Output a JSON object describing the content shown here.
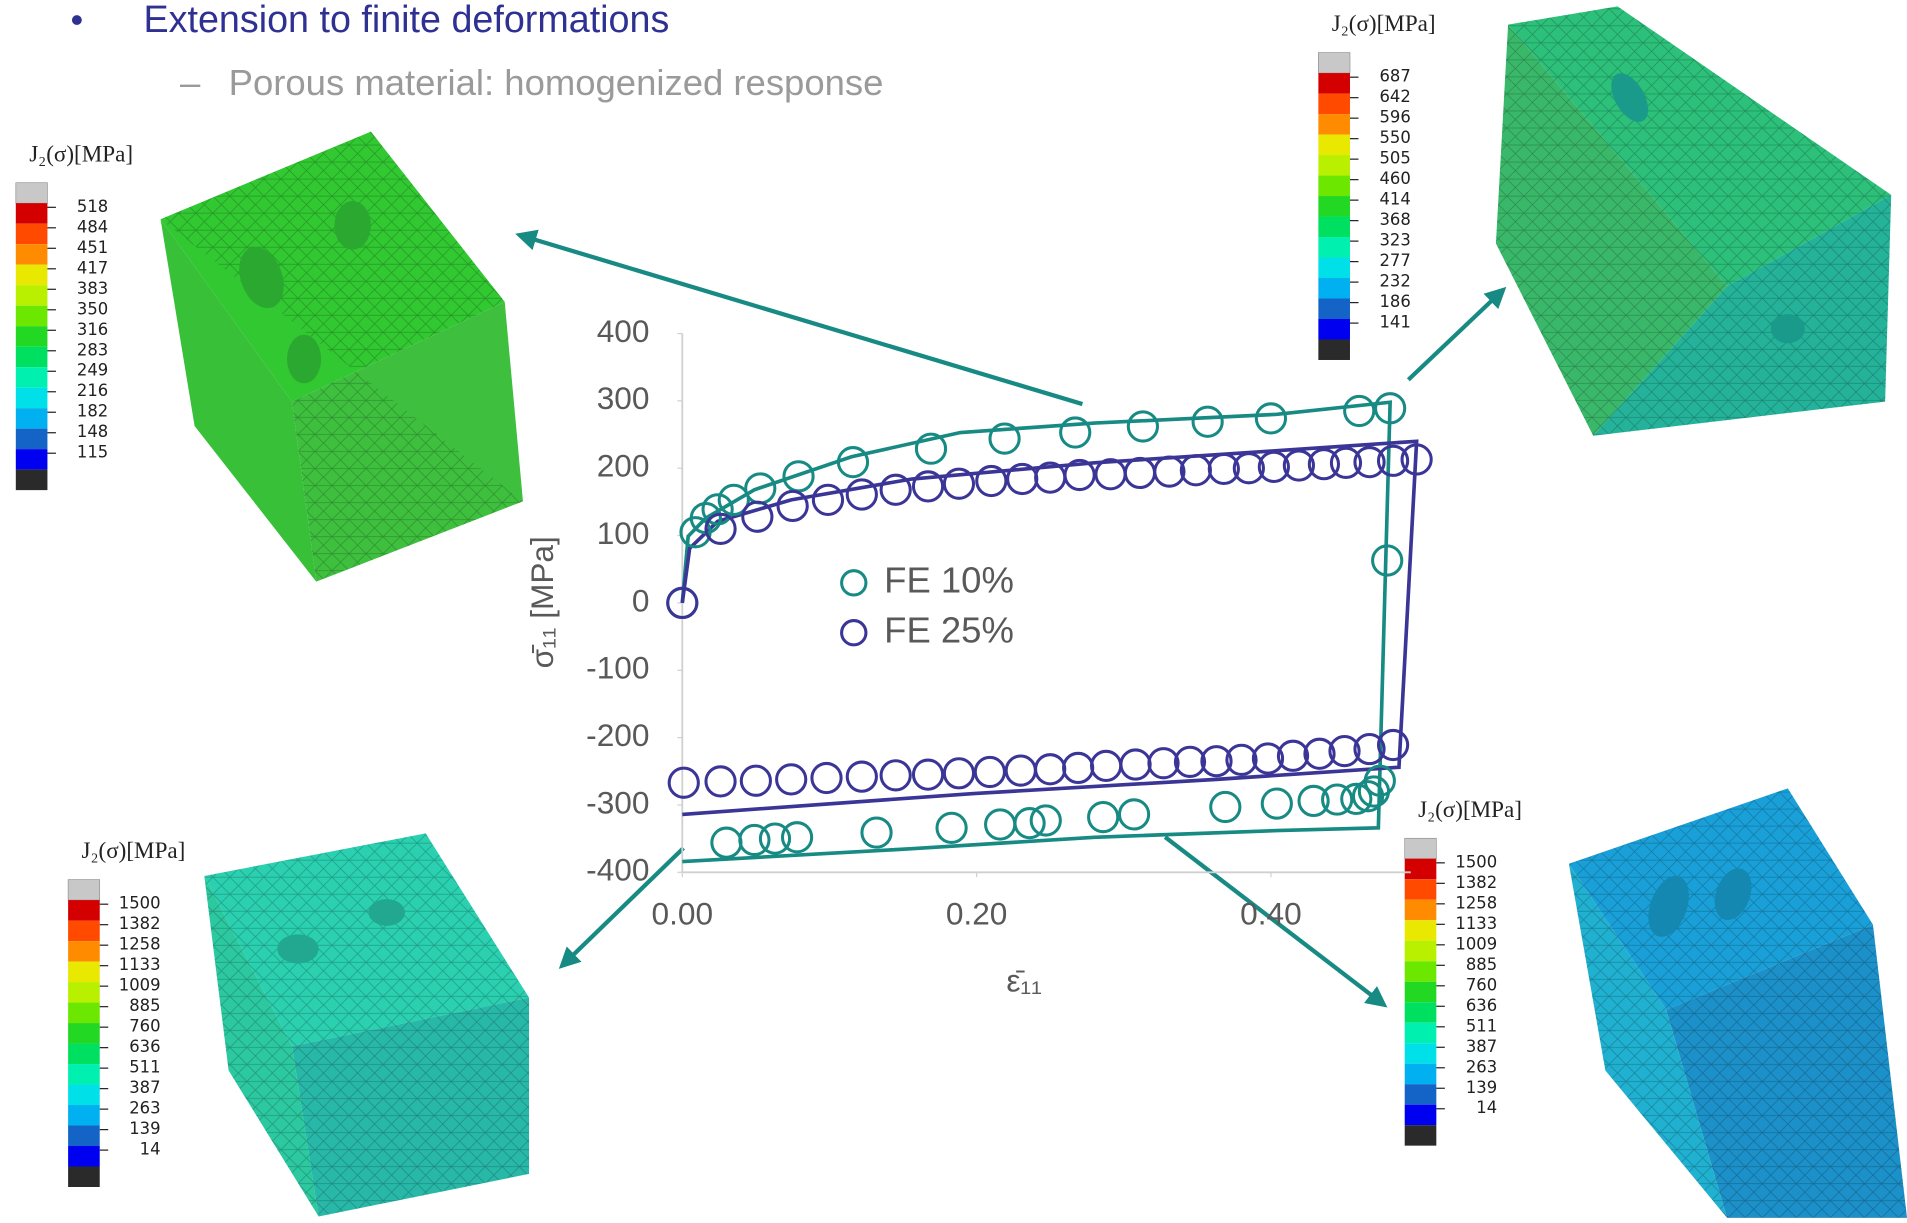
{
  "slide": {
    "bullet": "Extension to finite deformations",
    "sub_bullet": "Porous material: homogenized response"
  },
  "colorbars": [
    {
      "title": "J₂(σ)[MPa]",
      "labels": [
        518,
        484,
        451,
        417,
        383,
        350,
        316,
        283,
        249,
        216,
        182,
        148,
        115
      ]
    },
    {
      "title": "J₂(σ)[MPa]",
      "labels": [
        687,
        642,
        596,
        550,
        505,
        460,
        414,
        368,
        323,
        277,
        232,
        186,
        141
      ]
    },
    {
      "title": "J₂(σ)[MPa]",
      "labels": [
        1500,
        1382,
        1258,
        1133,
        1009,
        885,
        760,
        636,
        511,
        387,
        263,
        139,
        14
      ]
    },
    {
      "title": "J₂(σ)[MPa]",
      "labels": [
        1500,
        1382,
        1258,
        1133,
        1009,
        885,
        760,
        636,
        511,
        387,
        263,
        139,
        14
      ]
    }
  ],
  "chart_data": {
    "type": "scatter",
    "x_label": "ε̄₁₁",
    "y_label": "σ̄₁₁ [MPa]",
    "xlim": [
      0,
      0.5
    ],
    "xticks": [
      {
        "value": 0,
        "label": "0.00"
      },
      {
        "value": 0.2,
        "label": "0.20"
      },
      {
        "value": 0.4,
        "label": "0.40"
      }
    ],
    "ylim": [
      -400,
      400
    ],
    "yticks": [
      -400,
      -300,
      -200,
      -100,
      0,
      100,
      200,
      300,
      400
    ],
    "series": [
      {
        "name": "FE 10%",
        "color": "#178a84",
        "style": "markers",
        "x": [
          0,
          0.009,
          0.016,
          0.024,
          0.035,
          0.053,
          0.079,
          0.116,
          0.169,
          0.219,
          0.267,
          0.313,
          0.357,
          0.4,
          0.46,
          0.481,
          0.479,
          0.474,
          0.47,
          0.466,
          0.458,
          0.445,
          0.429,
          0.404,
          0.369,
          0.307,
          0.286,
          0.247,
          0.236,
          0.216,
          0.183,
          0.132,
          0.078,
          0.063,
          0.049,
          0.03
        ],
        "values": [
          0,
          105,
          126,
          139,
          153,
          170,
          188,
          209,
          229,
          244,
          253,
          262,
          269,
          274,
          285,
          289,
          63,
          -264,
          -280,
          -287,
          -291,
          -292,
          -294,
          -298,
          -303,
          -314,
          -318,
          -323,
          -327,
          -329,
          -334,
          -341,
          -348,
          -350,
          -352,
          -356
        ]
      },
      {
        "name": "FE 25%",
        "color": "#3a3596",
        "style": "markers",
        "x": [
          0,
          0.026,
          0.051,
          0.075,
          0.099,
          0.122,
          0.145,
          0.167,
          0.188,
          0.21,
          0.231,
          0.25,
          0.27,
          0.291,
          0.311,
          0.331,
          0.349,
          0.368,
          0.385,
          0.402,
          0.419,
          0.436,
          0.451,
          0.467,
          0.483,
          0.499,
          0.483,
          0.467,
          0.45,
          0.433,
          0.415,
          0.398,
          0.38,
          0.363,
          0.345,
          0.327,
          0.308,
          0.288,
          0.269,
          0.25,
          0.23,
          0.209,
          0.188,
          0.167,
          0.145,
          0.122,
          0.098,
          0.074,
          0.05,
          0.026,
          0.001
        ],
        "values": [
          0,
          110,
          128,
          144,
          153,
          161,
          168,
          173,
          177,
          181,
          184,
          186,
          190,
          191,
          193,
          195,
          197,
          199,
          200,
          202,
          204,
          206,
          208,
          209,
          211,
          213,
          -211,
          -217,
          -220,
          -224,
          -227,
          -231,
          -233,
          -235,
          -236,
          -238,
          -240,
          -242,
          -245,
          -247,
          -249,
          -251,
          -253,
          -255,
          -256,
          -258,
          -260,
          -262,
          -264,
          -265,
          -267
        ]
      },
      {
        "color": "#178a84",
        "style": "line",
        "x": [
          0,
          0.004,
          0.016,
          0.049,
          0.115,
          0.189,
          0.28,
          0.404,
          0.481,
          0.473,
          0.404,
          0.28,
          0.156,
          0
        ],
        "values": [
          0,
          99,
          126,
          168,
          217,
          253,
          267,
          280,
          298,
          -334,
          -338,
          -348,
          -365,
          -384
        ]
      },
      {
        "color": "#3a3596",
        "style": "line",
        "x": [
          0,
          0.005,
          0.024,
          0.074,
          0.156,
          0.28,
          0.404,
          0.499,
          0.487,
          0.363,
          0.198,
          0
        ],
        "values": [
          0,
          81,
          121,
          153,
          184,
          208,
          226,
          240,
          -244,
          -262,
          -283,
          -314
        ]
      }
    ]
  }
}
